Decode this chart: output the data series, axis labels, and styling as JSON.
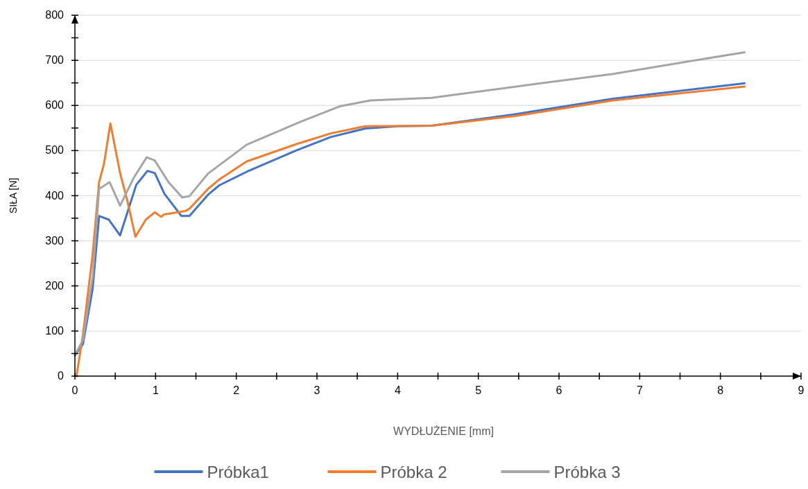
{
  "chart_data": {
    "type": "line",
    "xlabel": "WYDŁUŻENIE [mm]",
    "ylabel": "SIŁA [N]",
    "xlim": [
      0,
      9
    ],
    "ylim": [
      0,
      800
    ],
    "xticks": [
      0,
      {
        "value": 0.5,
        "label": null
      },
      1,
      {
        "value": 1.5,
        "label": null
      },
      2,
      {
        "value": 2.5,
        "label": null
      },
      3,
      {
        "value": 3.5,
        "label": null
      },
      4,
      {
        "value": 4.5,
        "label": null
      },
      5,
      {
        "value": 5.5,
        "label": null
      },
      6,
      {
        "value": 6.5,
        "label": null
      },
      7,
      {
        "value": 7.5,
        "label": null
      },
      8,
      {
        "value": 8.5,
        "label": null
      },
      9
    ],
    "yticks": [
      0,
      {
        "value": 50,
        "label": null
      },
      100,
      {
        "value": 150,
        "label": null
      },
      200,
      {
        "value": 250,
        "label": null
      },
      300,
      {
        "value": 350,
        "label": null
      },
      400,
      {
        "value": 450,
        "label": null
      },
      500,
      {
        "value": 550,
        "label": null
      },
      600,
      {
        "value": 650,
        "label": null
      },
      700,
      {
        "value": 750,
        "label": null
      },
      800
    ],
    "grid": "y",
    "legend": "bottom",
    "line_style": "solid",
    "marker": "none",
    "series": [
      {
        "name": "Próbka1",
        "color": "#4472c4",
        "x": [
          0,
          0.1,
          0.22,
          0.3,
          0.42,
          0.56,
          0.76,
          0.9,
          0.99,
          1.11,
          1.32,
          1.42,
          1.65,
          1.79,
          2.13,
          2.74,
          3.17,
          3.6,
          4.0,
          4.42,
          5.47,
          6.67,
          8.3
        ],
        "values": [
          46,
          71,
          194,
          355,
          347,
          312,
          424,
          455,
          450,
          404,
          355,
          355,
          402,
          423,
          453,
          500,
          530,
          549,
          554,
          555,
          581,
          615,
          649
        ]
      },
      {
        "name": "Próbka 2",
        "color": "#ed7d31",
        "x": [
          0.02,
          0.1,
          0.22,
          0.3,
          0.36,
          0.44,
          0.56,
          0.65,
          0.75,
          0.88,
          0.99,
          1.07,
          1.1,
          1.37,
          1.42,
          1.65,
          1.79,
          2.13,
          2.74,
          3.17,
          3.6,
          4.42,
          5.47,
          6.67,
          8.3
        ],
        "values": [
          0,
          92,
          270,
          430,
          470,
          560,
          450,
          389,
          309,
          347,
          363,
          353,
          358,
          366,
          371,
          415,
          436,
          476,
          514,
          538,
          554,
          555,
          577,
          611,
          642
        ]
      },
      {
        "name": "Próbka 3",
        "color": "#a5a5a5",
        "x": [
          0.01,
          0.1,
          0.22,
          0.3,
          0.43,
          0.56,
          0.73,
          0.89,
          0.99,
          1.16,
          1.33,
          1.42,
          1.65,
          2.13,
          2.8,
          3.28,
          3.66,
          4.42,
          5.47,
          6.67,
          8.3
        ],
        "values": [
          50,
          80,
          220,
          415,
          430,
          378,
          440,
          485,
          478,
          430,
          396,
          399,
          449,
          513,
          564,
          598,
          611,
          617,
          642,
          670,
          718
        ]
      }
    ]
  }
}
